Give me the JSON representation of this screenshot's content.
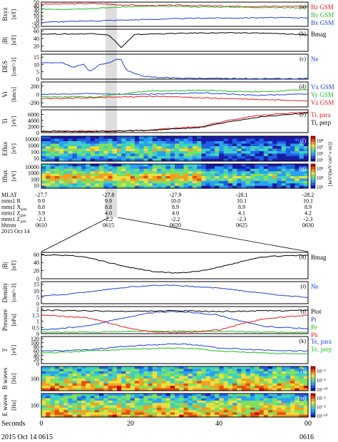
{
  "colors": {
    "frame": "#000000",
    "black": "#000000",
    "red": "#e41a1c",
    "green": "#22bb22",
    "blue": "#1f3fd6",
    "highlight": "#d8d8d8",
    "colorbar_min": "#1a1aa8",
    "colorbar_max": "#cc0000"
  },
  "chart_data": [
    {
      "type": "line",
      "panel_label": "(a)",
      "ylabel": "Bxyz",
      "yunit": "[nT]",
      "yticks": [
        -20,
        -10,
        0,
        10,
        20,
        30,
        40,
        50
      ],
      "ylim": [
        -20,
        50
      ],
      "series": [
        {
          "name": "Bz GSM",
          "color": "#e41a1c",
          "x": [
            0,
            0.1,
            0.2,
            0.3,
            0.4,
            0.5,
            0.6,
            0.7,
            0.8,
            0.9,
            1
          ],
          "values": [
            44,
            45,
            46,
            42,
            40,
            41,
            40,
            38,
            37,
            38,
            38
          ]
        },
        {
          "name": "By GSM",
          "color": "#22bb22",
          "x": [
            0,
            0.1,
            0.2,
            0.3,
            0.4,
            0.5,
            0.6,
            0.7,
            0.8,
            0.9,
            1
          ],
          "values": [
            30,
            30,
            32,
            36,
            38,
            38,
            36,
            36,
            35,
            34,
            34
          ]
        },
        {
          "name": "Bx GSM",
          "color": "#1f3fd6",
          "x": [
            0,
            0.1,
            0.2,
            0.3,
            0.4,
            0.5,
            0.6,
            0.7,
            0.8,
            0.9,
            1
          ],
          "values": [
            -8,
            -6,
            -4,
            -2,
            0,
            2,
            4,
            4,
            5,
            5,
            5
          ]
        }
      ]
    },
    {
      "type": "line",
      "panel_label": "(b)",
      "ylabel": "|B|",
      "yunit": "[nT]",
      "yticks": [
        20,
        40,
        60
      ],
      "ylim": [
        5,
        65
      ],
      "series": [
        {
          "name": "Bmag",
          "color": "#000000",
          "x": [
            0,
            0.1,
            0.2,
            0.25,
            0.28,
            0.3,
            0.32,
            0.35,
            0.4,
            0.6,
            0.8,
            1
          ],
          "values": [
            52,
            52,
            53,
            50,
            30,
            15,
            30,
            50,
            52,
            55,
            55,
            50
          ]
        }
      ]
    },
    {
      "type": "line",
      "panel_label": "(c)",
      "ylabel": "DES",
      "yunit": "[cm^-3]",
      "yticks": [
        0,
        5,
        10,
        15
      ],
      "ylim": [
        0,
        17
      ],
      "series": [
        {
          "name": "Ne",
          "color": "#1f3fd6",
          "x": [
            0,
            0.08,
            0.12,
            0.16,
            0.18,
            0.22,
            0.26,
            0.28,
            0.3,
            0.32,
            0.35,
            0.38,
            0.45,
            0.6,
            0.8,
            1
          ],
          "values": [
            11,
            11,
            8,
            10,
            5,
            10,
            11,
            14,
            13,
            6,
            4,
            2,
            1,
            0.5,
            0.4,
            0.4
          ]
        }
      ]
    },
    {
      "type": "line",
      "panel_label": "(d)",
      "ylabel": "Vi",
      "yunit": "[km/s]",
      "yticks": [
        -200,
        0,
        200
      ],
      "ylim": [
        -300,
        300
      ],
      "series": [
        {
          "name": "Vx GSM",
          "color": "#1f3fd6",
          "x": [
            0,
            0.2,
            0.4,
            0.6,
            0.8,
            1
          ],
          "values": [
            0,
            20,
            0,
            40,
            -20,
            10
          ]
        },
        {
          "name": "Vy GSM",
          "color": "#22bb22",
          "x": [
            0,
            0.2,
            0.4,
            0.6,
            0.8,
            1
          ],
          "values": [
            -50,
            -60,
            80,
            100,
            60,
            120
          ]
        },
        {
          "name": "Vz GSM",
          "color": "#e41a1c",
          "x": [
            0,
            0.2,
            0.4,
            0.6,
            0.8,
            1
          ],
          "values": [
            -100,
            -80,
            -40,
            -80,
            -120,
            -150
          ]
        }
      ]
    },
    {
      "type": "line",
      "panel_label": "(e)",
      "ylabel": "Ti",
      "yunit": "[eV]",
      "yticks": [
        0,
        2000,
        4000,
        6000
      ],
      "ylim": [
        0,
        7500
      ],
      "series": [
        {
          "name": "Ti, para",
          "color": "#e41a1c",
          "x": [
            0,
            0.2,
            0.3,
            0.4,
            0.5,
            0.6,
            0.7,
            0.8,
            0.9,
            1
          ],
          "values": [
            500,
            500,
            600,
            800,
            1500,
            2000,
            4000,
            5500,
            6200,
            6800
          ]
        },
        {
          "name": "Ti, perp",
          "color": "#000000",
          "x": [
            0,
            0.2,
            0.3,
            0.4,
            0.5,
            0.6,
            0.7,
            0.8,
            0.9,
            1
          ],
          "values": [
            400,
            400,
            500,
            700,
            1200,
            1800,
            3500,
            5000,
            5800,
            6500
          ]
        }
      ]
    },
    {
      "type": "heatmap",
      "panel_label": "(f)",
      "ylabel": "Eflux",
      "yunit": "[eV]",
      "yticks": [
        "10000",
        "1000",
        "100",
        "10"
      ],
      "colorbar_ticks": [
        "10⁸",
        "10⁷",
        "10⁶",
        "10⁵"
      ],
      "note": "electron energy spectrogram"
    },
    {
      "type": "heatmap",
      "panel_label": "(g)",
      "ylabel": "Iflux",
      "yunit": "[eV]",
      "yticks": [
        "10000",
        "1000",
        "100",
        "10"
      ],
      "colorbar_ticks": [
        "10⁶",
        "10⁴",
        "10²"
      ],
      "colorbar_label": "[keV/(keV·cm²·s·str)]",
      "note": "ion energy spectrogram"
    },
    {
      "type": "table",
      "ephemeris_rows": [
        {
          "label": "MLAT",
          "values": [
            "-27.7",
            "-27.8",
            "-27.9",
            "-28.1",
            "-28.2"
          ]
        },
        {
          "label": "mms1 R",
          "values": [
            "9.9",
            "9.9",
            "10.0",
            "10.1",
            "10.1"
          ]
        },
        {
          "label": "mms1 X",
          "values": [
            "8.8",
            "8.8",
            "8.9",
            "8.9",
            "8.9"
          ]
        },
        {
          "label": "mms1 Z",
          "values": [
            "3.9",
            "4.0",
            "4.0",
            "4.1",
            "4.2"
          ]
        },
        {
          "label": "mms1 Z",
          "values": [
            "-2.1",
            "-2.2",
            "-2.2",
            "-2.3",
            "-2.3"
          ]
        },
        {
          "label": "hhmm",
          "values": [
            "0610",
            "0615",
            "0620",
            "0625",
            "0630"
          ]
        }
      ],
      "row_subscripts": [
        "",
        "",
        "gsm",
        "gsm",
        "gsm",
        ""
      ],
      "date": "2015 Oct 14"
    },
    {
      "type": "line",
      "panel_label": "(h)",
      "ylabel": "|B|",
      "yunit": "[nT]",
      "yticks": [
        0,
        20,
        40,
        60
      ],
      "ylim": [
        0,
        65
      ],
      "series": [
        {
          "name": "Bmag",
          "color": "#000000",
          "x": [
            0,
            5,
            10,
            15,
            20,
            25,
            30,
            35,
            40,
            45,
            50,
            55,
            60
          ],
          "values": [
            58,
            58,
            54,
            40,
            28,
            18,
            14,
            18,
            28,
            42,
            54,
            57,
            58
          ]
        }
      ]
    },
    {
      "type": "line",
      "panel_label": "(i)",
      "ylabel": "Density",
      "yunit": "[cm^-3]",
      "yticks": [
        0,
        5,
        10,
        15
      ],
      "ylim": [
        0,
        17
      ],
      "series": [
        {
          "name": "Ne",
          "color": "#1f3fd6",
          "x": [
            0,
            5,
            10,
            15,
            20,
            25,
            30,
            35,
            40,
            45,
            50,
            55,
            60
          ],
          "values": [
            6,
            7,
            9,
            11,
            13,
            14,
            14,
            13,
            12,
            10,
            8,
            6,
            5
          ]
        }
      ]
    },
    {
      "type": "line",
      "panel_label": "(j)",
      "ylabel": "Pressure",
      "yunit": "[nPa]",
      "yticks": [
        0.0,
        0.5,
        1.0,
        1.5,
        2.0
      ],
      "ylim": [
        0,
        2.2
      ],
      "series": [
        {
          "name": "Ptot",
          "color": "#000000",
          "x": [
            0,
            10,
            20,
            30,
            40,
            50,
            60
          ],
          "values": [
            1.9,
            1.85,
            1.8,
            1.85,
            1.8,
            1.85,
            1.9
          ]
        },
        {
          "name": "Pi",
          "color": "#1f3fd6",
          "x": [
            0,
            10,
            15,
            20,
            25,
            30,
            35,
            40,
            45,
            50,
            60
          ],
          "values": [
            0.3,
            0.6,
            1.0,
            1.4,
            1.7,
            1.8,
            1.7,
            1.5,
            1.0,
            0.6,
            0.4
          ]
        },
        {
          "name": "Pe",
          "color": "#22bb22",
          "x": [
            0,
            10,
            20,
            30,
            40,
            50,
            60
          ],
          "values": [
            0.1,
            0.12,
            0.18,
            0.2,
            0.18,
            0.12,
            0.1
          ]
        },
        {
          "name": "Pb",
          "color": "#e41a1c",
          "x": [
            0,
            10,
            15,
            20,
            25,
            30,
            35,
            40,
            45,
            50,
            60
          ],
          "values": [
            1.5,
            1.3,
            0.9,
            0.4,
            0.15,
            0.1,
            0.15,
            0.3,
            0.8,
            1.2,
            1.5
          ]
        }
      ]
    },
    {
      "type": "line",
      "panel_label": "(k)",
      "ylabel": "T",
      "yunit": "[eV]",
      "yticks": [
        0,
        20,
        40,
        60,
        80,
        100,
        120
      ],
      "ylim": [
        0,
        130
      ],
      "series": [
        {
          "name": "Te, para",
          "color": "#1f3fd6",
          "x": [
            0,
            10,
            15,
            20,
            25,
            30,
            35,
            40,
            45,
            50,
            60
          ],
          "values": [
            60,
            65,
            75,
            85,
            90,
            95,
            90,
            75,
            70,
            65,
            60
          ]
        },
        {
          "name": "Te, perp",
          "color": "#22bb22",
          "x": [
            0,
            10,
            15,
            20,
            25,
            30,
            35,
            40,
            45,
            50,
            60
          ],
          "values": [
            50,
            60,
            65,
            70,
            72,
            75,
            70,
            60,
            55,
            50,
            48
          ]
        }
      ]
    },
    {
      "type": "heatmap",
      "panel_label": "(l)",
      "ylabel": "B waves",
      "yunit": "[Hz]",
      "yticks": [
        "100"
      ],
      "colorbar_ticks": [
        "10⁻²",
        "10⁻⁶",
        "10⁻¹⁰"
      ]
    },
    {
      "type": "heatmap",
      "panel_label": "(m)",
      "ylabel": "E waves",
      "yunit": "[Hz]",
      "yticks": [
        "100"
      ],
      "colorbar_ticks": [
        "10⁻²",
        "10⁻⁶",
        "10⁻¹⁰"
      ]
    }
  ],
  "x_axis": {
    "label": "Seconds",
    "ticks": [
      "0",
      "20",
      "40",
      "00"
    ],
    "start_time": "2015 Oct 14 0615",
    "end_time": "0616"
  }
}
